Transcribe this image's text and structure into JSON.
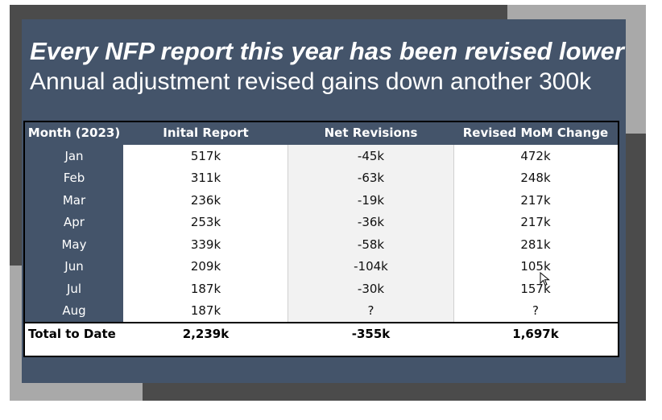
{
  "slide": {
    "title": "Every NFP report this year has been revised lower",
    "subtitle": "Annual adjustment revised gains down another 300k"
  },
  "table": {
    "headers": [
      "Month (2023)",
      "Inital Report",
      "Net Revisions",
      "Revised MoM Change"
    ],
    "rows": [
      [
        "Jan",
        "517k",
        "-45k",
        "472k"
      ],
      [
        "Feb",
        "311k",
        "-63k",
        "248k"
      ],
      [
        "Mar",
        "236k",
        "-19k",
        "217k"
      ],
      [
        "Apr",
        "253k",
        "-36k",
        "217k"
      ],
      [
        "May",
        "339k",
        "-58k",
        "281k"
      ],
      [
        "Jun",
        "209k",
        "-104k",
        "105k"
      ],
      [
        "Jul",
        "187k",
        "-30k",
        "157k"
      ],
      [
        "Aug",
        "187k",
        "?",
        "?"
      ]
    ],
    "total": [
      "Total to Date",
      "2,239k",
      "-355k",
      "1,697k"
    ]
  },
  "colors": {
    "slide_bg": "#44546a",
    "header_bg": "#44546a",
    "border": "#000000"
  },
  "icons": {
    "cursor": "mouse-pointer-icon"
  }
}
